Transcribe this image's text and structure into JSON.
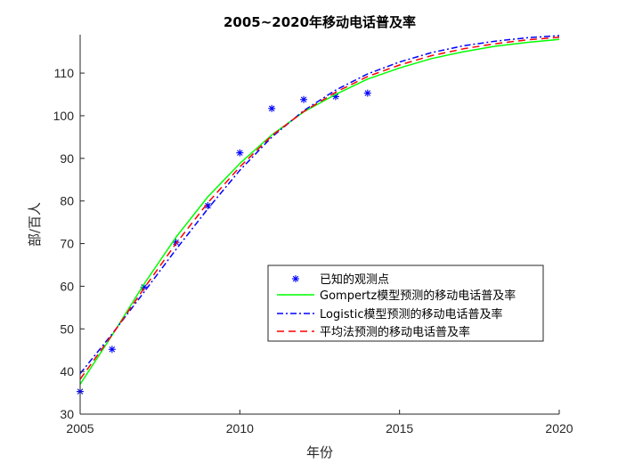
{
  "chart_data": {
    "type": "line",
    "title": "2005~2020年移动电话普及率",
    "xlabel": "年份",
    "ylabel": "部/百人",
    "xlim": [
      2005,
      2020
    ],
    "ylim": [
      30,
      119
    ],
    "xticks": [
      2005,
      2010,
      2015,
      2020
    ],
    "yticks": [
      30,
      40,
      50,
      60,
      70,
      80,
      90,
      100,
      110
    ],
    "grid": false,
    "legend_position": "center-right",
    "series": [
      {
        "name": "已知的观测点",
        "style": "marker",
        "marker": "asterisk",
        "color": "#0000ff",
        "x": [
          2005,
          2006,
          2007,
          2008,
          2009,
          2010,
          2011,
          2012,
          2013,
          2014
        ],
        "y": [
          35.3,
          45.2,
          59.8,
          70.3,
          78.9,
          91.3,
          101.7,
          103.8,
          104.5,
          105.3
        ]
      },
      {
        "name": "Gompertz模型预测的移动电话普及率",
        "style": "solid",
        "color": "#00ff00",
        "x": [
          2005,
          2006,
          2007,
          2008,
          2009,
          2010,
          2011,
          2012,
          2013,
          2014,
          2015,
          2016,
          2017,
          2018,
          2019,
          2020
        ],
        "y": [
          37.0,
          48.5,
          60.5,
          71.5,
          81.0,
          88.8,
          95.5,
          100.9,
          105.0,
          108.6,
          111.2,
          113.4,
          115.0,
          116.3,
          117.2,
          117.9
        ]
      },
      {
        "name": "Logistic模型预测的移动电话普及率",
        "style": "dashdot",
        "color": "#0000ff",
        "x": [
          2005,
          2006,
          2007,
          2008,
          2009,
          2010,
          2011,
          2012,
          2013,
          2014,
          2015,
          2016,
          2017,
          2018,
          2019,
          2020
        ],
        "y": [
          39.5,
          48.8,
          58.6,
          68.6,
          78.2,
          87.2,
          95.0,
          101.2,
          106.0,
          109.8,
          112.6,
          114.8,
          116.4,
          117.5,
          118.3,
          118.8
        ]
      },
      {
        "name": "平均法预测的移动电话普及率",
        "style": "dashed",
        "color": "#ff0000",
        "x": [
          2005,
          2006,
          2007,
          2008,
          2009,
          2010,
          2011,
          2012,
          2013,
          2014,
          2015,
          2016,
          2017,
          2018,
          2019,
          2020
        ],
        "y": [
          38.2,
          48.6,
          59.5,
          70.0,
          79.6,
          88.0,
          95.3,
          101.0,
          105.5,
          109.2,
          111.9,
          114.1,
          115.7,
          116.9,
          117.8,
          118.4
        ]
      }
    ]
  }
}
